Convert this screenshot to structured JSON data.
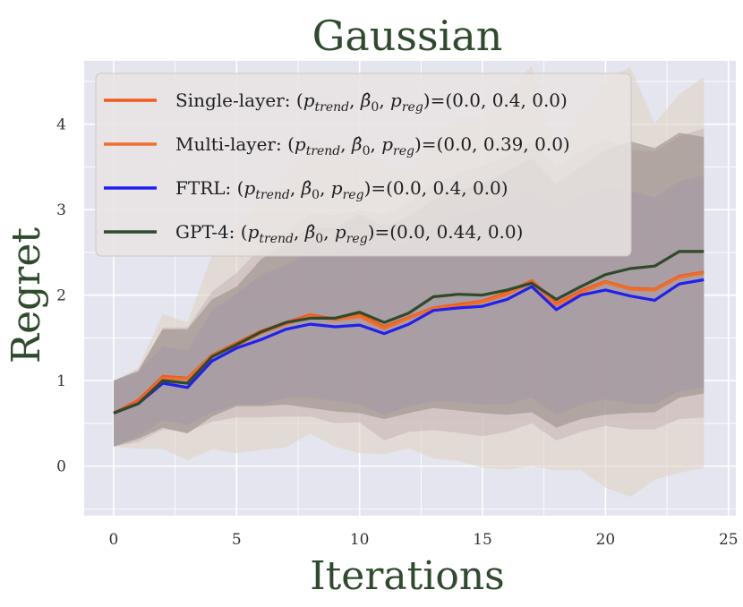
{
  "chart_data": {
    "type": "line",
    "title": "Gaussian",
    "xlabel": "Iterations",
    "ylabel": "Regret",
    "xlim": [
      -1.2,
      25.3
    ],
    "ylim": [
      -0.58,
      4.74
    ],
    "xticks": [
      0,
      5,
      10,
      15,
      20,
      25
    ],
    "yticks": [
      0,
      1,
      2,
      3,
      4
    ],
    "grid": true,
    "legend_position": "top-left",
    "background_color": "#e5e5ef",
    "x": [
      0,
      1,
      2,
      3,
      4,
      5,
      6,
      7,
      8,
      9,
      10,
      11,
      12,
      13,
      14,
      15,
      16,
      17,
      18,
      19,
      20,
      21,
      22,
      23,
      24
    ],
    "series": [
      {
        "legend": "Single-layer: (p_trend, β̂_0, p_reg)=(0.0, 0.4, 0.0)",
        "legend_parts": {
          "label": "Single-layer: ",
          "values": "=(0.0, 0.4, 0.0)"
        },
        "color": "#f05a1a",
        "band_color": "#dfd2c0",
        "values": [
          0.62,
          0.77,
          1.05,
          1.03,
          1.3,
          1.44,
          1.58,
          1.68,
          1.77,
          1.72,
          1.77,
          1.63,
          1.74,
          1.85,
          1.89,
          1.93,
          2.03,
          2.17,
          1.9,
          2.05,
          2.16,
          2.08,
          2.07,
          2.22,
          2.27
        ],
        "upper": [
          1.0,
          1.15,
          1.78,
          1.68,
          2.47,
          2.78,
          3.13,
          3.38,
          3.85,
          3.71,
          3.8,
          3.51,
          3.47,
          3.83,
          4.08,
          4.08,
          4.38,
          4.68,
          3.67,
          4.11,
          4.52,
          4.67,
          4.01,
          4.35,
          4.55
        ],
        "lower": [
          0.23,
          0.2,
          0.2,
          0.07,
          0.2,
          0.15,
          0.19,
          0.22,
          0.38,
          0.23,
          0.15,
          0.14,
          0.21,
          0.09,
          0.06,
          -0.02,
          -0.04,
          0.0,
          -0.05,
          -0.05,
          -0.25,
          -0.36,
          -0.16,
          -0.08,
          -0.02
        ]
      },
      {
        "legend": "Multi-layer: (p_trend, β̂_0, p_reg)=(0.0, 0.39, 0.0)",
        "legend_parts": {
          "label": "Multi-layer: ",
          "values": "=(0.0, 0.39, 0.0)"
        },
        "color": "#ef6e2c",
        "band_color": "#c6b5b4",
        "values": [
          0.62,
          0.74,
          1.03,
          1.02,
          1.29,
          1.41,
          1.56,
          1.66,
          1.75,
          1.71,
          1.75,
          1.61,
          1.73,
          1.84,
          1.87,
          1.92,
          2.01,
          2.15,
          1.88,
          2.03,
          2.15,
          2.07,
          2.06,
          2.21,
          2.26
        ],
        "upper": [
          1.0,
          1.1,
          1.62,
          1.62,
          2.04,
          2.26,
          2.56,
          2.75,
          2.95,
          2.94,
          3.0,
          2.94,
          3.08,
          3.3,
          3.42,
          3.51,
          3.62,
          3.8,
          3.49,
          3.68,
          3.82,
          3.7,
          3.68,
          3.86,
          3.95
        ],
        "lower": [
          0.23,
          0.28,
          0.43,
          0.4,
          0.52,
          0.57,
          0.57,
          0.58,
          0.58,
          0.5,
          0.51,
          0.3,
          0.4,
          0.42,
          0.39,
          0.35,
          0.4,
          0.5,
          0.3,
          0.4,
          0.47,
          0.43,
          0.43,
          0.55,
          0.57
        ]
      },
      {
        "legend": "FTRL: (p_trend, β̂_0, p_reg)=(0.0, 0.4, 0.0)",
        "legend_parts": {
          "label": "FTRL: ",
          "values": "=(0.0, 0.4, 0.0)"
        },
        "color": "#2020ef",
        "band_color": "#b5aacb",
        "values": [
          0.62,
          0.73,
          0.97,
          0.92,
          1.23,
          1.38,
          1.48,
          1.6,
          1.66,
          1.63,
          1.65,
          1.55,
          1.66,
          1.82,
          1.85,
          1.87,
          1.95,
          2.1,
          1.83,
          2.0,
          2.06,
          1.99,
          1.94,
          2.13,
          2.18
        ],
        "upper": [
          1.0,
          1.1,
          1.4,
          1.35,
          1.82,
          2.02,
          2.24,
          2.35,
          2.52,
          2.5,
          2.6,
          2.5,
          2.62,
          2.8,
          2.93,
          3.0,
          3.07,
          3.22,
          3.0,
          3.15,
          3.27,
          3.22,
          3.14,
          3.33,
          3.4
        ],
        "lower": [
          0.23,
          0.35,
          0.54,
          0.48,
          0.63,
          0.72,
          0.72,
          0.8,
          0.8,
          0.76,
          0.72,
          0.6,
          0.7,
          0.76,
          0.75,
          0.72,
          0.72,
          0.8,
          0.6,
          0.72,
          0.78,
          0.73,
          0.72,
          0.88,
          0.92
        ]
      },
      {
        "legend": "GPT-4: (p_trend, β̂_0, p_reg)=(0.0, 0.44, 0.0)",
        "legend_parts": {
          "label": "GPT-4: ",
          "values": "=(0.0, 0.44, 0.0)"
        },
        "color": "#2f4a2c",
        "band_color": "#958a85",
        "values": [
          0.62,
          0.73,
          1.0,
          0.97,
          1.28,
          1.42,
          1.57,
          1.68,
          1.73,
          1.73,
          1.8,
          1.68,
          1.79,
          1.98,
          2.01,
          2.0,
          2.06,
          2.14,
          1.95,
          2.1,
          2.24,
          2.31,
          2.34,
          2.51,
          2.51
        ],
        "upper": [
          1.0,
          1.12,
          1.6,
          1.6,
          1.95,
          2.1,
          2.42,
          2.6,
          2.8,
          2.78,
          2.95,
          2.8,
          2.92,
          3.12,
          3.22,
          3.3,
          3.45,
          3.6,
          3.3,
          3.5,
          3.7,
          3.8,
          3.72,
          3.9,
          3.85
        ],
        "lower": [
          0.23,
          0.32,
          0.45,
          0.38,
          0.58,
          0.7,
          0.7,
          0.72,
          0.68,
          0.64,
          0.62,
          0.55,
          0.62,
          0.68,
          0.65,
          0.62,
          0.6,
          0.63,
          0.45,
          0.55,
          0.6,
          0.62,
          0.63,
          0.8,
          0.85
        ]
      }
    ]
  }
}
